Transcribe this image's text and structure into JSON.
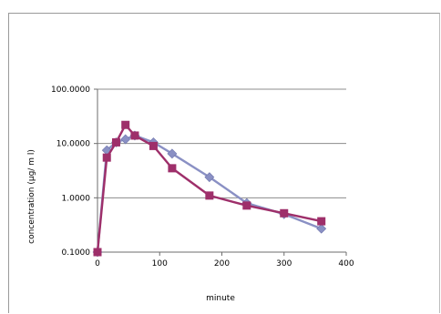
{
  "chart_data": {
    "type": "line",
    "title": "",
    "xlabel": "minute",
    "ylabel": "concentration   (μg/ m l)",
    "xlim": [
      0,
      400
    ],
    "ylim": [
      0.1,
      100
    ],
    "yscale": "log",
    "grid": {
      "horizontal": true,
      "vertical": false
    },
    "x_ticks": [
      "0",
      "100",
      "200",
      "300",
      "400"
    ],
    "y_ticks": [
      "0.1000",
      "1.0000",
      "10.0000",
      "100.0000"
    ],
    "y_tick_values": [
      0.1,
      1,
      10,
      100
    ],
    "x_tick_values": [
      0,
      100,
      200,
      300,
      400
    ],
    "series": [
      {
        "color": "#8a90c4",
        "marker": "diamond",
        "x": [
          0,
          15,
          30,
          45,
          60,
          90,
          120,
          180,
          240,
          300,
          360
        ],
        "y": [
          0.1,
          7.5,
          10.5,
          12.0,
          14.0,
          10.5,
          6.5,
          2.4,
          0.8,
          0.5,
          0.27
        ]
      },
      {
        "color": "#9e2f6a",
        "marker": "square",
        "x": [
          0,
          15,
          30,
          45,
          60,
          90,
          120,
          180,
          240,
          300,
          360
        ],
        "y": [
          0.1,
          5.5,
          10.5,
          22.0,
          14.0,
          9.0,
          3.5,
          1.1,
          0.72,
          0.52,
          0.37
        ]
      }
    ]
  }
}
